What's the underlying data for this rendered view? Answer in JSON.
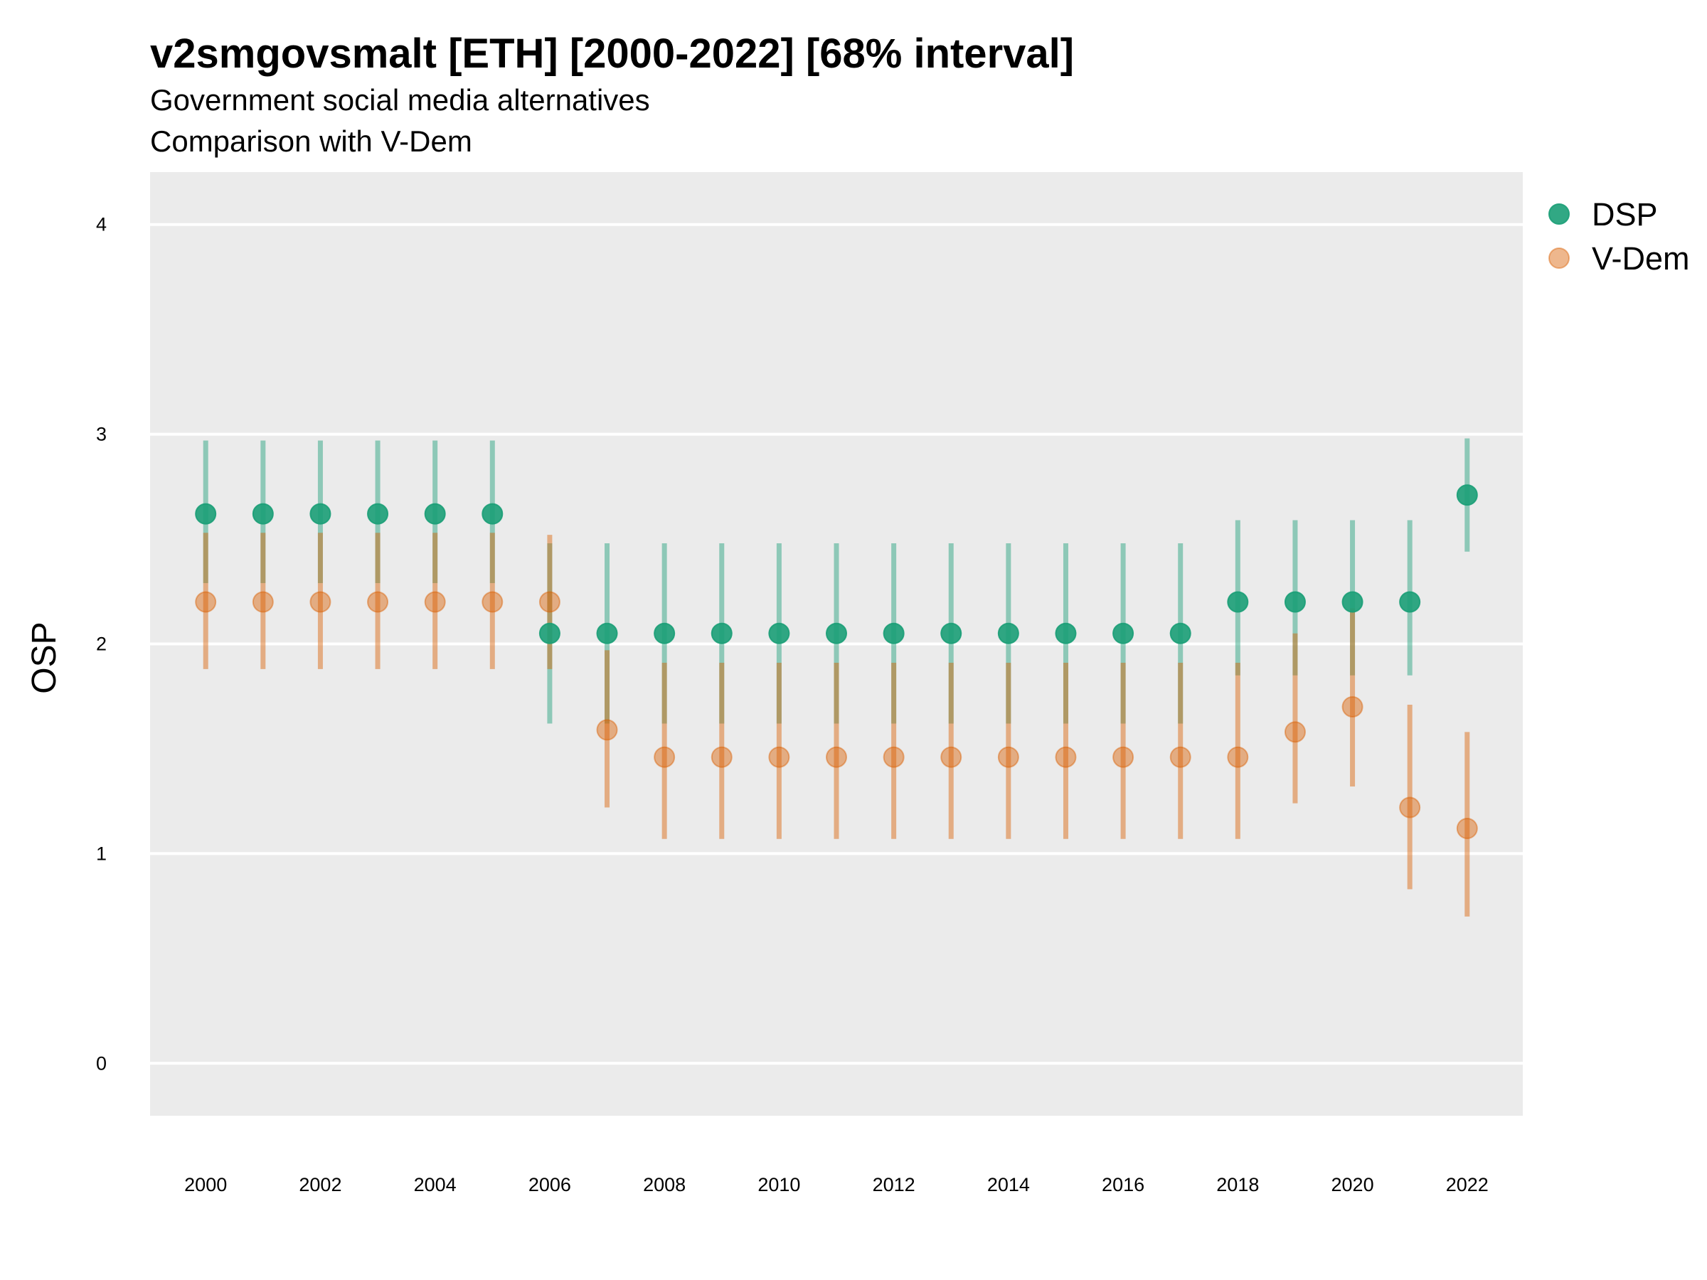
{
  "chart_data": {
    "type": "scatter",
    "title": "v2smgovsmalt [ETH] [2000-2022] [68% interval]",
    "subtitle": "Government social media alternatives",
    "subtitle2": "Comparison with V-Dem",
    "ylabel": "OSP",
    "xlabel": "",
    "ylim": [
      -0.25,
      4.25
    ],
    "yticks": [
      0,
      1,
      2,
      3,
      4
    ],
    "xticks": [
      2000,
      2002,
      2004,
      2006,
      2008,
      2010,
      2012,
      2014,
      2016,
      2018,
      2020,
      2022
    ],
    "grid": true,
    "legend": "right",
    "series": [
      {
        "name": "DSP",
        "color": "#1b9e77",
        "x": [
          2000,
          2001,
          2002,
          2003,
          2004,
          2005,
          2006,
          2007,
          2008,
          2009,
          2010,
          2011,
          2012,
          2013,
          2014,
          2015,
          2016,
          2017,
          2018,
          2019,
          2020,
          2021,
          2022
        ],
        "y": [
          2.62,
          2.62,
          2.62,
          2.62,
          2.62,
          2.62,
          2.05,
          2.05,
          2.05,
          2.05,
          2.05,
          2.05,
          2.05,
          2.05,
          2.05,
          2.05,
          2.05,
          2.05,
          2.2,
          2.2,
          2.2,
          2.2,
          2.71
        ],
        "lower": [
          2.29,
          2.29,
          2.29,
          2.29,
          2.29,
          2.29,
          1.62,
          1.62,
          1.62,
          1.62,
          1.62,
          1.62,
          1.62,
          1.62,
          1.62,
          1.62,
          1.62,
          1.62,
          1.85,
          1.85,
          1.85,
          1.85,
          2.44
        ],
        "upper": [
          2.97,
          2.97,
          2.97,
          2.97,
          2.97,
          2.97,
          2.48,
          2.48,
          2.48,
          2.48,
          2.48,
          2.48,
          2.48,
          2.48,
          2.48,
          2.48,
          2.48,
          2.48,
          2.59,
          2.59,
          2.59,
          2.59,
          2.98
        ]
      },
      {
        "name": "V-Dem",
        "color": "#d95f02",
        "x": [
          2000,
          2001,
          2002,
          2003,
          2004,
          2005,
          2006,
          2007,
          2008,
          2009,
          2010,
          2011,
          2012,
          2013,
          2014,
          2015,
          2016,
          2017,
          2018,
          2019,
          2020,
          2021,
          2022
        ],
        "y": [
          2.2,
          2.2,
          2.2,
          2.2,
          2.2,
          2.2,
          2.2,
          1.59,
          1.46,
          1.46,
          1.46,
          1.46,
          1.46,
          1.46,
          1.46,
          1.46,
          1.46,
          1.46,
          1.46,
          1.58,
          1.7,
          1.22,
          1.12
        ],
        "lower": [
          1.88,
          1.88,
          1.88,
          1.88,
          1.88,
          1.88,
          1.88,
          1.22,
          1.07,
          1.07,
          1.07,
          1.07,
          1.07,
          1.07,
          1.07,
          1.07,
          1.07,
          1.07,
          1.07,
          1.24,
          1.32,
          0.83,
          0.7
        ],
        "upper": [
          2.53,
          2.53,
          2.53,
          2.53,
          2.53,
          2.53,
          2.52,
          1.97,
          1.91,
          1.91,
          1.91,
          1.91,
          1.91,
          1.91,
          1.91,
          1.91,
          1.91,
          1.91,
          1.91,
          2.05,
          2.17,
          1.71,
          1.58
        ]
      }
    ]
  }
}
